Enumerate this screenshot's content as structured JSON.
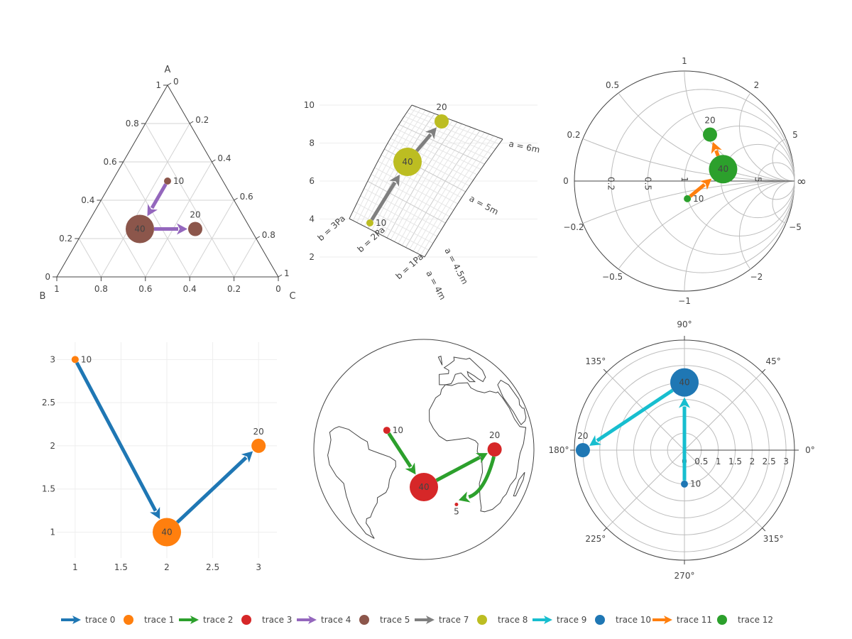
{
  "colors": {
    "trace0": "#1f77b4",
    "trace1": "#ff7f0e",
    "trace2": "#2ca02c",
    "trace3": "#d62728",
    "trace4": "#9467bd",
    "trace5": "#8c564b",
    "trace7": "#7f7f7f",
    "trace8": "#bcbd22",
    "trace9": "#17becf",
    "trace10": "#1f77b4",
    "trace11": "#ff7f0e",
    "trace12": "#2ca02c"
  },
  "legend": [
    {
      "name": "trace 0",
      "kind": "line",
      "color": "#1f77b4"
    },
    {
      "name": "trace 1",
      "kind": "marker",
      "color": "#ff7f0e"
    },
    {
      "name": "trace 2",
      "kind": "line",
      "color": "#2ca02c"
    },
    {
      "name": "trace 3",
      "kind": "marker",
      "color": "#d62728"
    },
    {
      "name": "trace 4",
      "kind": "line",
      "color": "#9467bd"
    },
    {
      "name": "trace 5",
      "kind": "marker",
      "color": "#8c564b"
    },
    {
      "name": "trace 7",
      "kind": "line",
      "color": "#7f7f7f"
    },
    {
      "name": "trace 8",
      "kind": "marker",
      "color": "#bcbd22"
    },
    {
      "name": "trace 9",
      "kind": "line",
      "color": "#17becf"
    },
    {
      "name": "trace 10",
      "kind": "marker",
      "color": "#1f77b4"
    },
    {
      "name": "trace 11",
      "kind": "line",
      "color": "#ff7f0e"
    },
    {
      "name": "trace 12",
      "kind": "marker",
      "color": "#2ca02c"
    }
  ],
  "chart_data": [
    {
      "type": "ternary",
      "axis_titles": {
        "a": "A",
        "b": "B",
        "c": "C"
      },
      "ticks": [
        "0",
        "0.2",
        "0.4",
        "0.6",
        "0.8",
        "1"
      ],
      "points": [
        {
          "a": 0.5,
          "b": 0.25,
          "c": 0.25,
          "size": 10,
          "label": "10"
        },
        {
          "a": 0.25,
          "b": 0.5,
          "c": 0.25,
          "size": 40,
          "label": "40"
        },
        {
          "a": 0.25,
          "b": 0.25,
          "c": 0.5,
          "size": 20,
          "label": "20"
        }
      ],
      "path_order": [
        0,
        1,
        2
      ],
      "line_trace": "trace 4",
      "marker_trace": "trace 5"
    },
    {
      "type": "carpet",
      "y_ticks": [
        "2",
        "4",
        "6",
        "8",
        "10"
      ],
      "a_labels": [
        "a = 4m",
        "a = 4.5m",
        "a = 5m",
        "a = 6m"
      ],
      "b_labels": [
        "b = 1Pa",
        "b = 2Pa",
        "b = 3Pa"
      ],
      "points": [
        {
          "label": "10",
          "size": 10
        },
        {
          "label": "40",
          "size": 40
        },
        {
          "label": "20",
          "size": 20
        }
      ],
      "line_trace": "trace 7",
      "marker_trace": "trace 8"
    },
    {
      "type": "smith",
      "real_ticks": [
        "0.2",
        "0.5",
        "1",
        "2",
        "5"
      ],
      "imag_ticks": [
        "0.2",
        "0.5",
        "1",
        "2",
        "5",
        "−0.2",
        "−0.5",
        "−1",
        "−2",
        "−5"
      ],
      "zero_label": "0",
      "inf_label": "∞",
      "points": [
        {
          "re": 1,
          "im": -0.33,
          "size": 10,
          "label": "10"
        },
        {
          "re": 2,
          "im": 0.5,
          "size": 40,
          "label": "40"
        },
        {
          "re": 1,
          "im": 1.1,
          "size": 20,
          "label": "20"
        }
      ],
      "line_trace": "trace 11",
      "marker_trace": "trace 12"
    },
    {
      "type": "scatter",
      "x": [
        1,
        2,
        3
      ],
      "y": [
        3,
        1,
        2
      ],
      "sizes": [
        10,
        40,
        20
      ],
      "labels": [
        "10",
        "40",
        "20"
      ],
      "x_ticks": [
        "1",
        "1.5",
        "2",
        "2.5",
        "3"
      ],
      "y_ticks": [
        "1",
        "1.5",
        "2",
        "2.5",
        "3"
      ],
      "xlim": [
        0.8,
        3.2
      ],
      "ylim": [
        0.7,
        3.2
      ],
      "line_trace": "trace 0",
      "marker_trace": "trace 1"
    },
    {
      "type": "geo",
      "points": [
        {
          "lon": -40,
          "lat": 10,
          "size": 10,
          "label": "10"
        },
        {
          "lon": -20,
          "lat": -20,
          "size": 40,
          "label": "40"
        },
        {
          "lon": 20,
          "lat": 0,
          "size": 20,
          "label": "20"
        },
        {
          "lon": 0,
          "lat": -30,
          "size": 5,
          "label": "5"
        }
      ],
      "line_trace": "trace 2",
      "marker_trace": "trace 3"
    },
    {
      "type": "polar",
      "radial_ticks": [
        "0",
        "0.5",
        "1",
        "1.5",
        "2",
        "2.5",
        "3"
      ],
      "angular_ticks": [
        "0°",
        "45°",
        "90°",
        "135°",
        "180°",
        "225°",
        "270°",
        "315°"
      ],
      "points": [
        {
          "r": 1,
          "theta": 270,
          "size": 10,
          "label": "10"
        },
        {
          "r": 2,
          "theta": 90,
          "size": 40,
          "label": "40"
        },
        {
          "r": 3,
          "theta": 180,
          "size": 20,
          "label": "20"
        }
      ],
      "line_trace": "trace 9",
      "marker_trace": "trace 10"
    }
  ]
}
